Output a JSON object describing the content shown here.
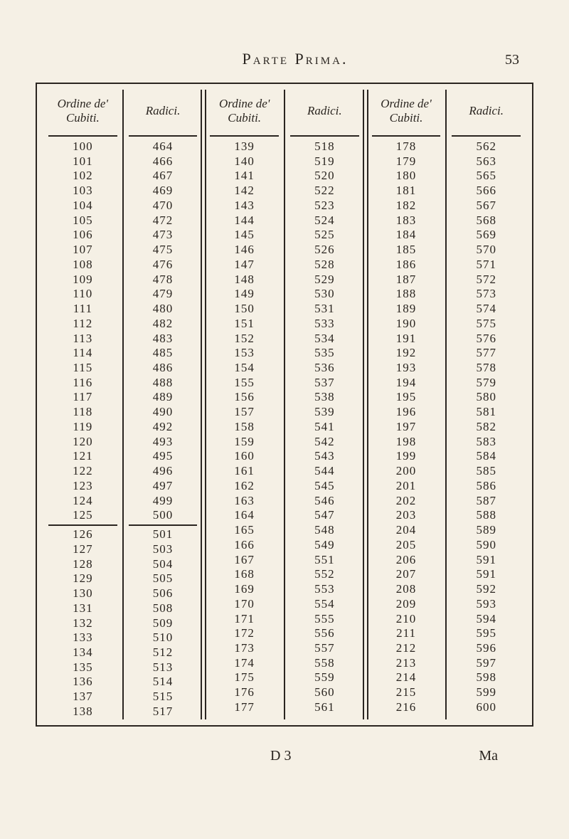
{
  "page": {
    "running_title": "Parte Prima.",
    "page_number": "53",
    "signature": "D 3",
    "catchword": "Ma"
  },
  "headers": {
    "ordine": "Ordine de' Cubiti.",
    "radici": "Radici."
  },
  "typography": {
    "body_font": "Times New Roman",
    "header_italic": true,
    "body_fontsize_pt": 17,
    "header_fontsize_pt": 17,
    "line_height": 1.22
  },
  "colors": {
    "paper": "#f5f0e5",
    "ink": "#2a2520",
    "rule": "#2a2520"
  },
  "table": {
    "type": "table",
    "blocks": [
      {
        "ordine": [
          "100",
          "101",
          "102",
          "103",
          "104",
          "105",
          "106",
          "107",
          "108",
          "109",
          "110",
          "111",
          "112",
          "113",
          "114",
          "115",
          "116",
          "117",
          "118",
          "119",
          "120",
          "121",
          "122",
          "123",
          "124",
          "125"
        ],
        "radici": [
          "464",
          "466",
          "467",
          "469",
          "470",
          "472",
          "473",
          "475",
          "476",
          "478",
          "479",
          "480",
          "482",
          "483",
          "485",
          "486",
          "488",
          "489",
          "490",
          "492",
          "493",
          "495",
          "496",
          "497",
          "499",
          "500"
        ],
        "section_break_after": 25,
        "ordine2": [
          "126",
          "127",
          "128",
          "129",
          "130",
          "131",
          "132",
          "133",
          "134",
          "135",
          "136",
          "137",
          "138"
        ],
        "radici2": [
          "501",
          "503",
          "504",
          "505",
          "506",
          "508",
          "509",
          "510",
          "512",
          "513",
          "514",
          "515",
          "517"
        ]
      },
      {
        "ordine": [
          "139",
          "140",
          "141",
          "142",
          "143",
          "144",
          "145",
          "146",
          "147",
          "148",
          "149",
          "150",
          "151",
          "152",
          "153",
          "154",
          "155",
          "156",
          "157",
          "158",
          "159",
          "160",
          "161",
          "162",
          "163",
          "164",
          "165",
          "166",
          "167",
          "168",
          "169",
          "170",
          "171",
          "172",
          "173",
          "174",
          "175",
          "176",
          "177"
        ],
        "radici": [
          "518",
          "519",
          "520",
          "522",
          "523",
          "524",
          "525",
          "526",
          "528",
          "529",
          "530",
          "531",
          "533",
          "534",
          "535",
          "536",
          "537",
          "538",
          "539",
          "541",
          "542",
          "543",
          "544",
          "545",
          "546",
          "547",
          "548",
          "549",
          "551",
          "552",
          "553",
          "554",
          "555",
          "556",
          "557",
          "558",
          "559",
          "560",
          "561"
        ]
      },
      {
        "ordine": [
          "178",
          "179",
          "180",
          "181",
          "182",
          "183",
          "184",
          "185",
          "186",
          "187",
          "188",
          "189",
          "190",
          "191",
          "192",
          "193",
          "194",
          "195",
          "196",
          "197",
          "198",
          "199",
          "200",
          "201",
          "202",
          "203",
          "204",
          "205",
          "206",
          "207",
          "208",
          "209",
          "210",
          "211",
          "212",
          "213",
          "214",
          "215",
          "216"
        ],
        "radici": [
          "562",
          "563",
          "565",
          "566",
          "567",
          "568",
          "569",
          "570",
          "571",
          "572",
          "573",
          "574",
          "575",
          "576",
          "577",
          "578",
          "579",
          "580",
          "581",
          "582",
          "583",
          "584",
          "585",
          "586",
          "587",
          "588",
          "589",
          "590",
          "591",
          "591",
          "592",
          "593",
          "594",
          "595",
          "596",
          "597",
          "598",
          "599",
          "600"
        ]
      }
    ]
  }
}
